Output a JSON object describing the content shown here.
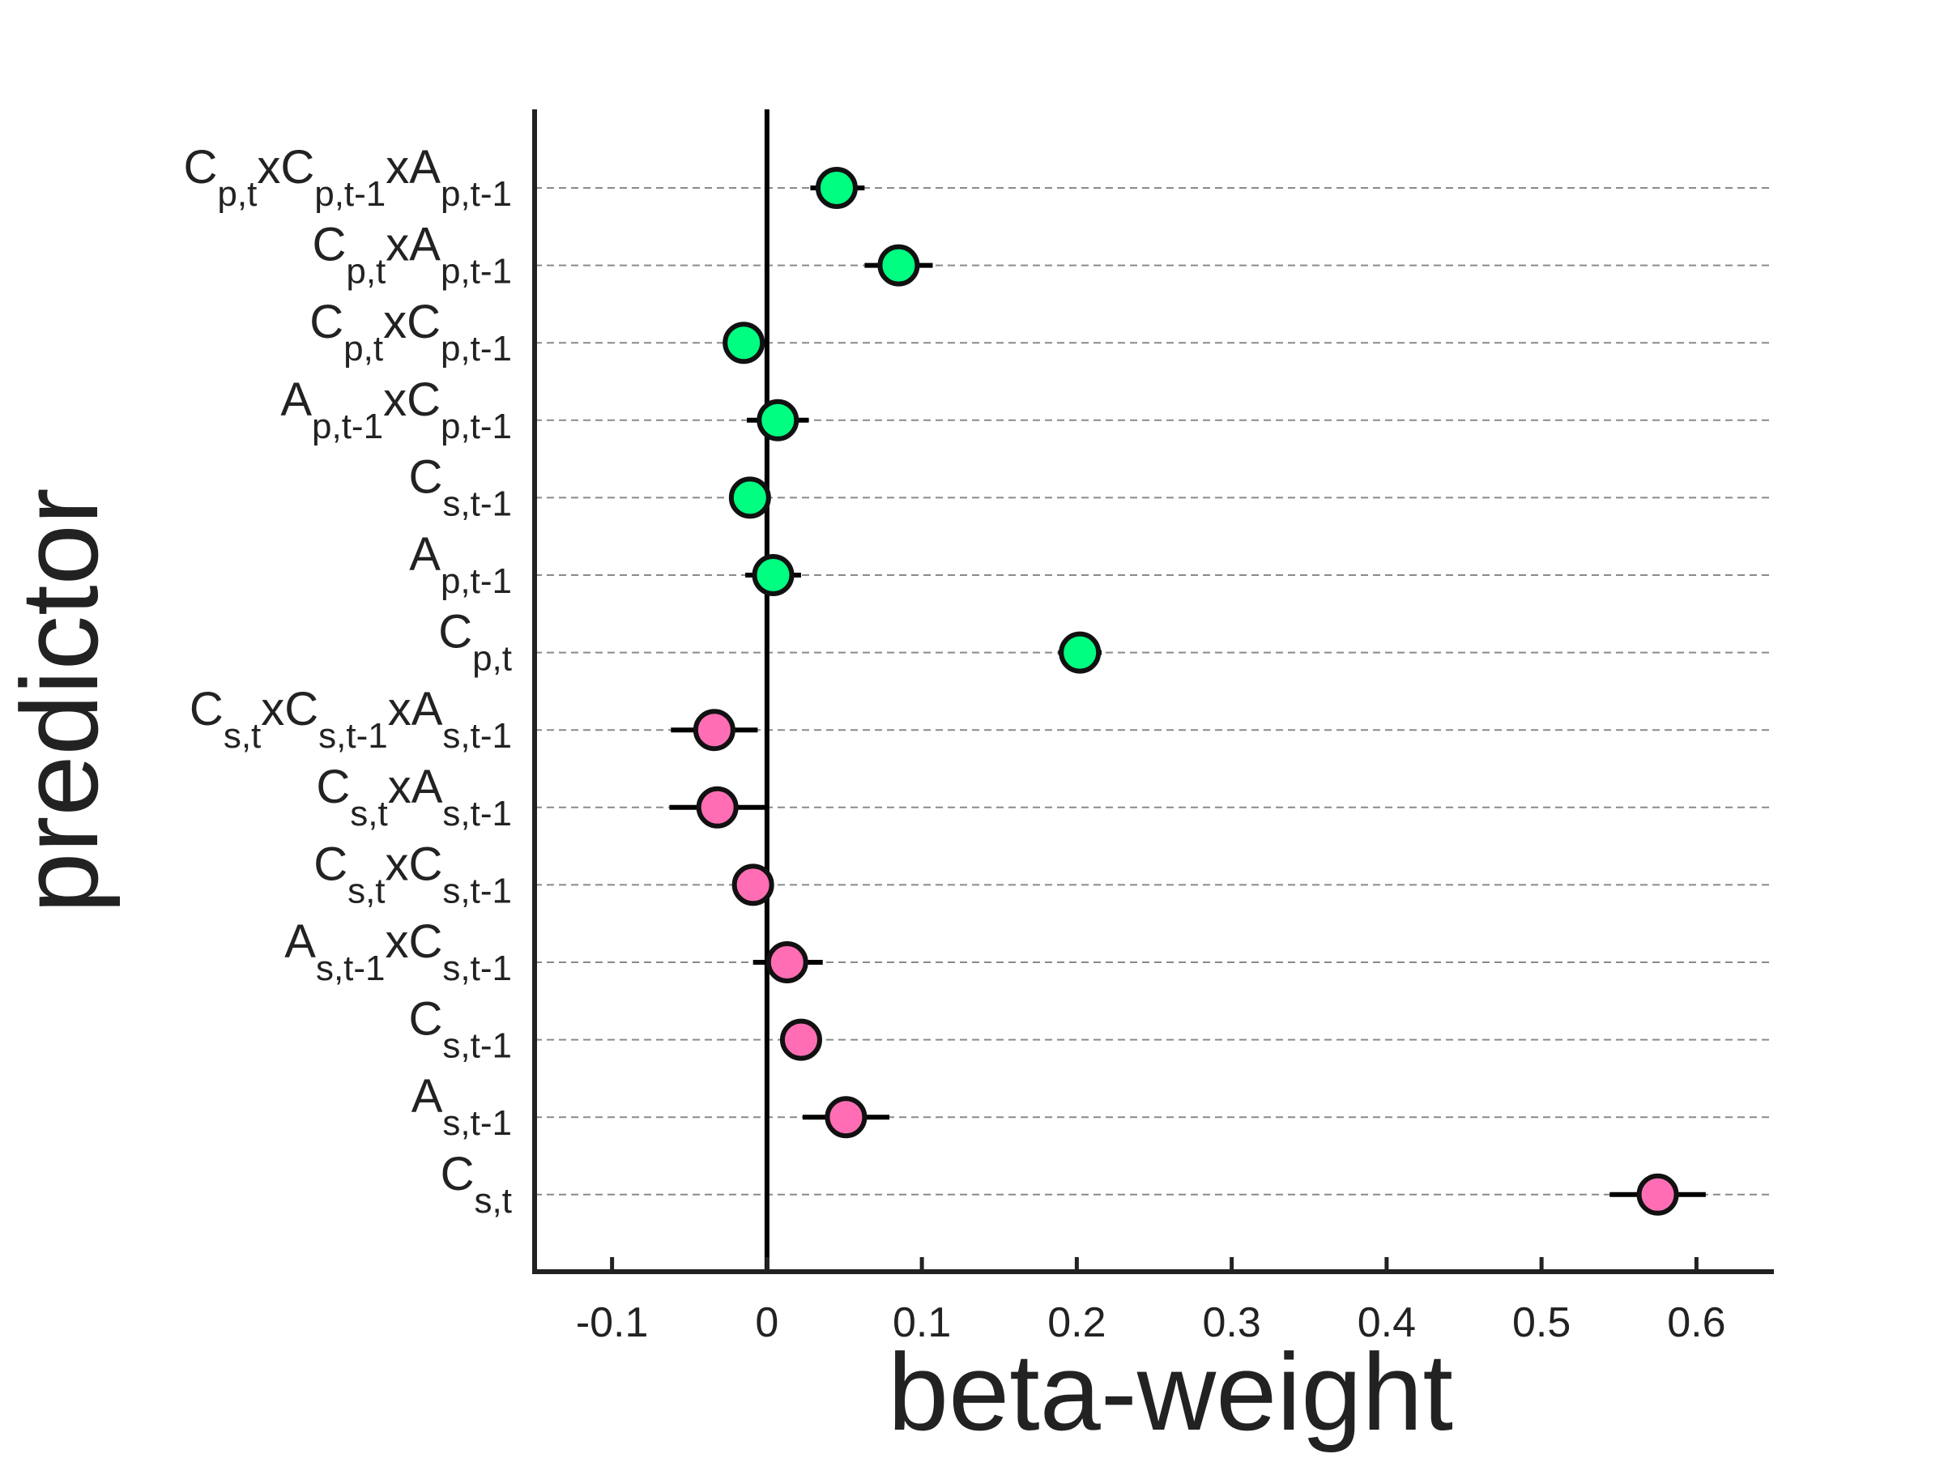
{
  "chart_data": {
    "type": "scatter",
    "xlabel": "beta-weight",
    "ylabel": "predictor",
    "xlim": [
      -0.15,
      0.65
    ],
    "xticks": [
      -0.1,
      0,
      0.1,
      0.2,
      0.3,
      0.4,
      0.5,
      0.6
    ],
    "xtick_labels": [
      "-0.1",
      "0",
      "0.1",
      "0.2",
      "0.3",
      "0.4",
      "0.5",
      "0.6"
    ],
    "grid": "horizontal dashed",
    "zero_line": true,
    "colors": {
      "green": "#00ff80",
      "pink": "#ff6eb4"
    },
    "predictors": [
      {
        "label": [
          [
            "C",
            ""
          ],
          [
            "",
            "p,t"
          ],
          [
            "xC",
            ""
          ],
          [
            "",
            "p,t-1"
          ],
          [
            "xA",
            ""
          ],
          [
            "",
            "p,t-1"
          ]
        ],
        "value": 0.045,
        "err_low": 0.028,
        "err_high": 0.063,
        "color": "green"
      },
      {
        "label": [
          [
            "C",
            ""
          ],
          [
            "",
            "p,t"
          ],
          [
            "xA",
            ""
          ],
          [
            "",
            "p,t-1"
          ]
        ],
        "value": 0.085,
        "err_low": 0.063,
        "err_high": 0.107,
        "color": "green"
      },
      {
        "label": [
          [
            "C",
            ""
          ],
          [
            "",
            "p,t"
          ],
          [
            "xC",
            ""
          ],
          [
            "",
            "p,t-1"
          ]
        ],
        "value": -0.015,
        "err_low": -0.025,
        "err_high": -0.005,
        "color": "green"
      },
      {
        "label": [
          [
            "A",
            ""
          ],
          [
            "",
            "p,t-1"
          ],
          [
            "xC",
            ""
          ],
          [
            "",
            "p,t-1"
          ]
        ],
        "value": 0.007,
        "err_low": -0.013,
        "err_high": 0.027,
        "color": "green"
      },
      {
        "label": [
          [
            "C",
            ""
          ],
          [
            "",
            "s,t-1"
          ]
        ],
        "value": -0.011,
        "err_low": -0.021,
        "err_high": -0.001,
        "color": "green"
      },
      {
        "label": [
          [
            "A",
            ""
          ],
          [
            "",
            "p,t-1"
          ]
        ],
        "value": 0.004,
        "err_low": -0.014,
        "err_high": 0.022,
        "color": "green"
      },
      {
        "label": [
          [
            "C",
            ""
          ],
          [
            "",
            "p,t"
          ]
        ],
        "value": 0.202,
        "err_low": 0.188,
        "err_high": 0.216,
        "color": "green"
      },
      {
        "label": [
          [
            "C",
            ""
          ],
          [
            "",
            "s,t"
          ],
          [
            "xC",
            ""
          ],
          [
            "",
            "s,t-1"
          ],
          [
            "xA",
            ""
          ],
          [
            "",
            "s,t-1"
          ]
        ],
        "value": -0.034,
        "err_low": -0.062,
        "err_high": -0.006,
        "color": "pink"
      },
      {
        "label": [
          [
            "C",
            ""
          ],
          [
            "",
            "s,t"
          ],
          [
            "xA",
            ""
          ],
          [
            "",
            "s,t-1"
          ]
        ],
        "value": -0.032,
        "err_low": -0.063,
        "err_high": -0.001,
        "color": "pink"
      },
      {
        "label": [
          [
            "C",
            ""
          ],
          [
            "",
            "s,t"
          ],
          [
            "xC",
            ""
          ],
          [
            "",
            "s,t-1"
          ]
        ],
        "value": -0.009,
        "err_low": -0.019,
        "err_high": 0.001,
        "color": "pink"
      },
      {
        "label": [
          [
            "A",
            ""
          ],
          [
            "",
            "s,t-1"
          ],
          [
            "xC",
            ""
          ],
          [
            "",
            "s,t-1"
          ]
        ],
        "value": 0.013,
        "err_low": -0.009,
        "err_high": 0.036,
        "color": "pink"
      },
      {
        "label": [
          [
            "C",
            ""
          ],
          [
            "",
            "s,t-1"
          ]
        ],
        "value": 0.022,
        "err_low": 0.012,
        "err_high": 0.032,
        "color": "pink"
      },
      {
        "label": [
          [
            "A",
            ""
          ],
          [
            "",
            "s,t-1"
          ]
        ],
        "value": 0.051,
        "err_low": 0.023,
        "err_high": 0.079,
        "color": "pink"
      },
      {
        "label": [
          [
            "C",
            ""
          ],
          [
            "",
            "s,t"
          ]
        ],
        "value": 0.575,
        "err_low": 0.544,
        "err_high": 0.606,
        "color": "pink"
      }
    ]
  }
}
